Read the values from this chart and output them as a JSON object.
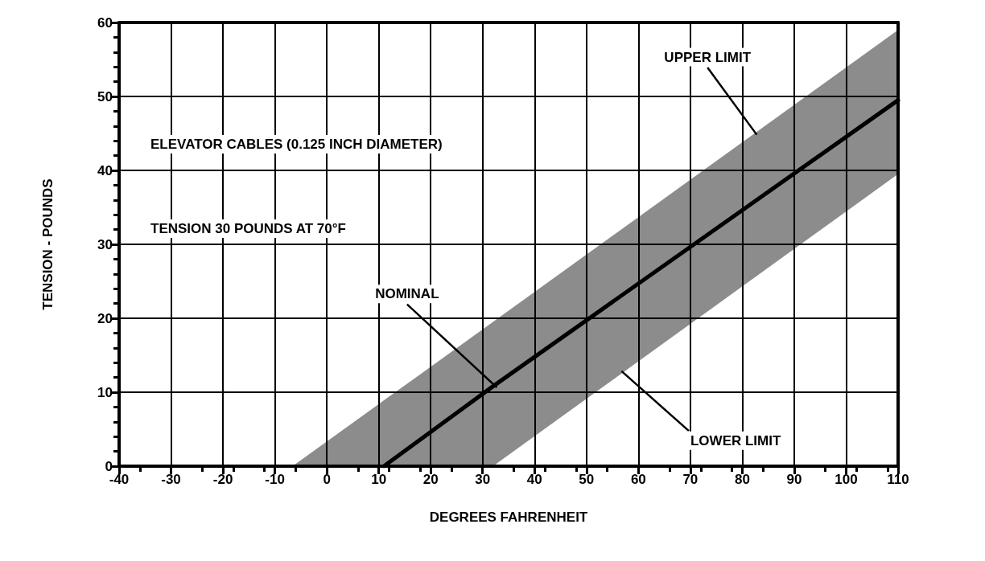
{
  "chart_data": {
    "type": "line",
    "xlabel": "DEGREES FAHRENHEIT",
    "ylabel": "TENSION - POUNDS",
    "x": [
      -6.6,
      11,
      32,
      110
    ],
    "series": [
      {
        "color": "#000000",
        "values": [
          null,
          0,
          10.8,
          49.5
        ],
        "lower": [
          0,
          0,
          0,
          39.5
        ],
        "upper": [
          0,
          8.9,
          19.5,
          59
        ]
      }
    ],
    "xlim": [
      -40,
      110
    ],
    "xticks": [
      -40,
      -30,
      -20,
      -10,
      0,
      10,
      20,
      30,
      40,
      50,
      60,
      70,
      80,
      90,
      100,
      110
    ],
    "ylim": [
      0,
      60
    ],
    "yticks": [
      0,
      10,
      20,
      30,
      40,
      50,
      60
    ],
    "grid": true,
    "marker": "none",
    "line_style": "solid",
    "annotations": [
      "ELEVATOR CABLES (0.125 INCH DIAMETER)",
      "TENSION 30 POUNDS AT 70°F",
      {
        "text": "UPPER LIMIT",
        "x": 82.6,
        "y": 45
      },
      {
        "text": "NOMINAL",
        "x": 32.5,
        "y": 10.8
      },
      {
        "text": "LOWER LIMIT",
        "x": 57,
        "y": 12.7
      }
    ]
  }
}
